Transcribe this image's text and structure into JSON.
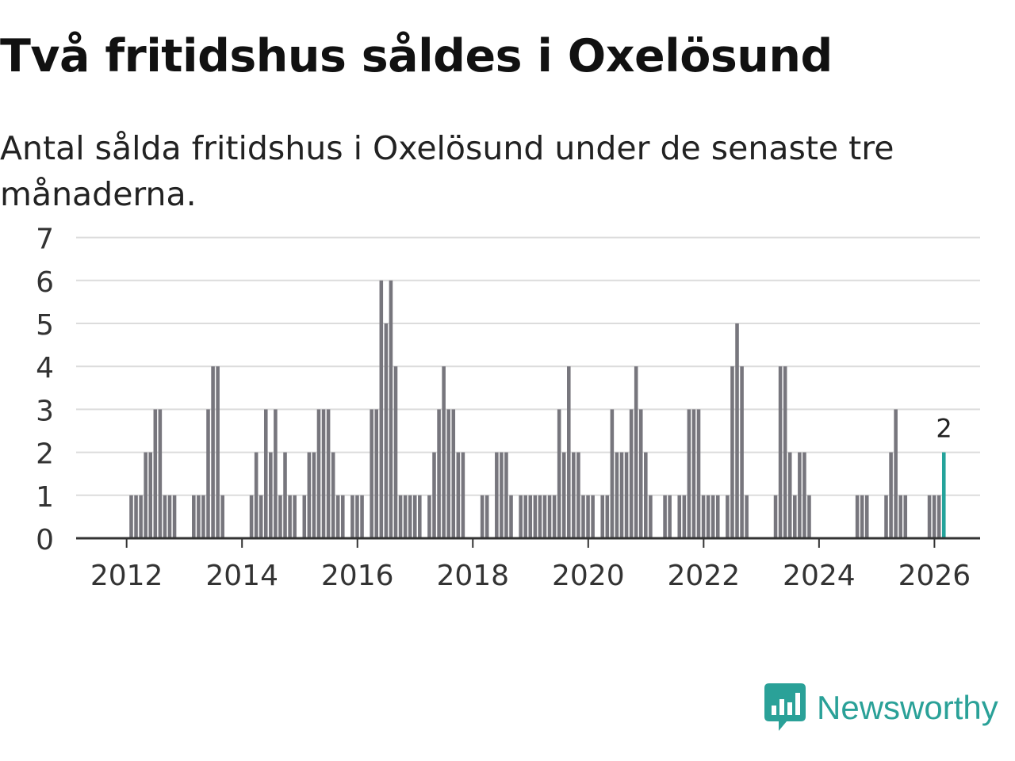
{
  "title": "Två fritidshus såldes i Oxelösund",
  "subtitle": "Antal sålda fritidshus i Oxelösund under de senaste tre månaderna.",
  "brand": "Newsworthy",
  "colors": {
    "bar": "#77767d",
    "highlight": "#24a39b",
    "grid": "#dcdcdc",
    "axis": "#333333",
    "text": "#333333"
  },
  "chart_data": {
    "type": "bar",
    "title": "Två fritidshus såldes i Oxelösund",
    "xlabel": "",
    "ylabel": "",
    "ylim": [
      0,
      7
    ],
    "yticks": [
      "0",
      "1",
      "2",
      "3",
      "4",
      "5",
      "6",
      "7"
    ],
    "xticks": [
      "2012",
      "2014",
      "2016",
      "2018",
      "2020",
      "2022",
      "2024",
      "2026"
    ],
    "start": "2011-03",
    "grid": true,
    "annotation": "2",
    "series": [
      {
        "name": "Antal sålda fritidshus (rullande tre månader)",
        "values": [
          0,
          0,
          0,
          0,
          0,
          0,
          0,
          0,
          0,
          0,
          0,
          1,
          1,
          1,
          2,
          2,
          3,
          3,
          1,
          1,
          1,
          0,
          0,
          0,
          1,
          1,
          1,
          3,
          4,
          4,
          1,
          0,
          0,
          0,
          0,
          0,
          1,
          2,
          1,
          3,
          2,
          3,
          1,
          2,
          1,
          1,
          0,
          1,
          2,
          2,
          3,
          3,
          3,
          2,
          1,
          1,
          0,
          1,
          1,
          1,
          0,
          3,
          3,
          6,
          5,
          6,
          4,
          1,
          1,
          1,
          1,
          1,
          0,
          1,
          2,
          3,
          4,
          3,
          3,
          2,
          2,
          0,
          0,
          0,
          1,
          1,
          0,
          2,
          2,
          2,
          1,
          0,
          1,
          1,
          1,
          1,
          1,
          1,
          1,
          1,
          3,
          2,
          4,
          2,
          2,
          1,
          1,
          1,
          0,
          1,
          1,
          3,
          2,
          2,
          2,
          3,
          4,
          3,
          2,
          1,
          0,
          0,
          1,
          1,
          0,
          1,
          1,
          3,
          3,
          3,
          1,
          1,
          1,
          1,
          0,
          1,
          4,
          5,
          4,
          1,
          0,
          0,
          0,
          0,
          0,
          1,
          4,
          4,
          2,
          1,
          2,
          2,
          1,
          0,
          0,
          0,
          0,
          0,
          0,
          0,
          0,
          0,
          1,
          1,
          1,
          0,
          0,
          0,
          1,
          2,
          3,
          1,
          1,
          0,
          0,
          0,
          0,
          1,
          1,
          1,
          2
        ]
      }
    ]
  }
}
